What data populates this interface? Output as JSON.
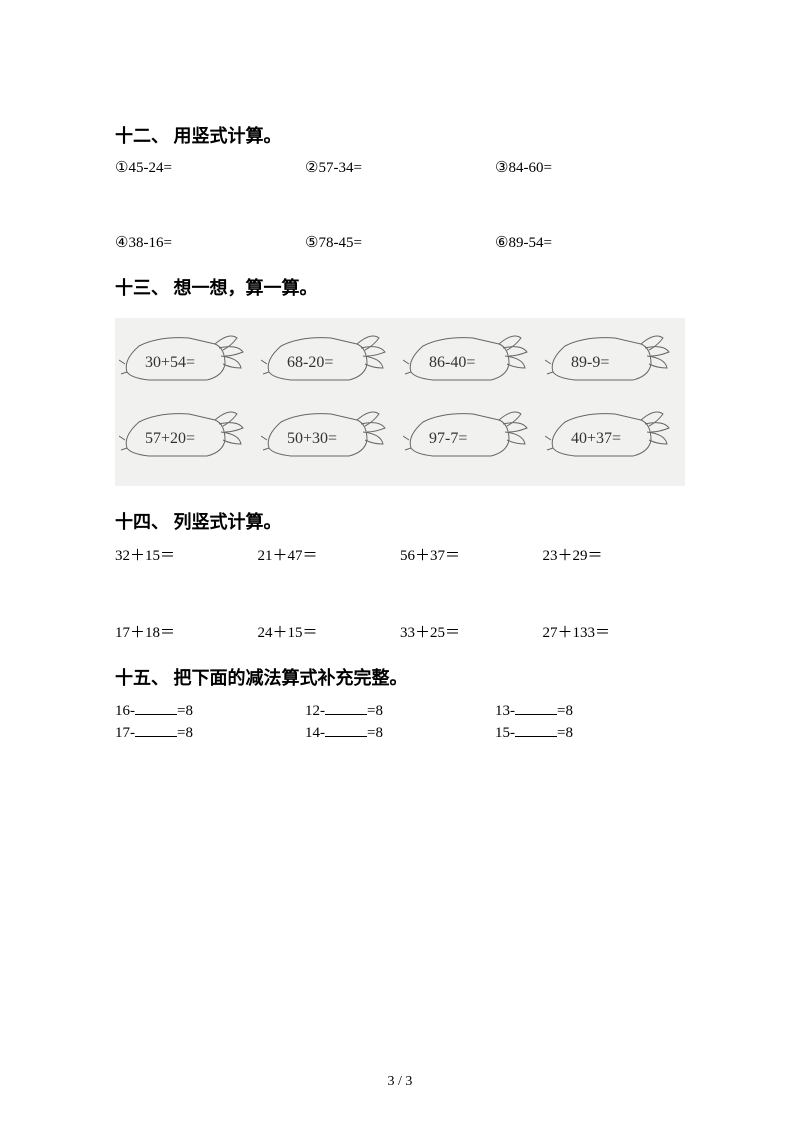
{
  "section12": {
    "title": "十二、 用竖式计算。",
    "row1": [
      "①45-24=",
      "②57-34=",
      "③84-60="
    ],
    "row2": [
      "④38-16=",
      "⑤78-45=",
      "⑥89-54="
    ]
  },
  "section13": {
    "title": "十三、 想一想，算一算。",
    "carrots_row1": [
      "30+54=",
      "68-20=",
      "86-40=",
      "89-9="
    ],
    "carrots_row2": [
      "57+20=",
      "50+30=",
      "97-7=",
      "40+37="
    ],
    "carrot_stroke": "#666666",
    "carrot_bg": "#f1f1ef"
  },
  "section14": {
    "title": "十四、 列竖式计算。",
    "row1": [
      "32＋15＝",
      "21＋47＝",
      "56＋37＝",
      "23＋29＝"
    ],
    "row2": [
      "17＋18＝",
      "24＋15＝",
      "33＋25＝",
      "27＋133＝"
    ]
  },
  "section15": {
    "title": "十五、 把下面的减法算式补充完整。",
    "row1": [
      {
        "pre": "16-",
        "post": "=8"
      },
      {
        "pre": "12-",
        "post": "=8"
      },
      {
        "pre": "13-",
        "post": "=8"
      }
    ],
    "row2": [
      {
        "pre": "17-",
        "post": "=8"
      },
      {
        "pre": "14-",
        "post": "=8"
      },
      {
        "pre": "15-",
        "post": "=8"
      }
    ]
  },
  "page_number": "3 / 3"
}
